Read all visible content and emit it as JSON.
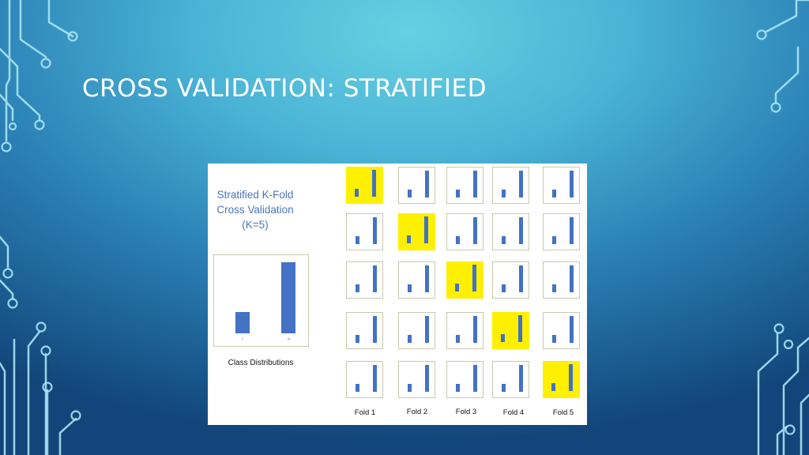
{
  "slide": {
    "title": "CROSS VALIDATION: STRATIFIED"
  },
  "panel": {
    "heading_lines": [
      "Stratified K-Fold",
      "Cross Validation",
      "(K=5)"
    ],
    "caption": "Class Distributions",
    "fold_labels": [
      "Fold 1",
      "Fold 2",
      "Fold 3",
      "Fold 4",
      "Fold 5"
    ]
  },
  "colors": {
    "bar": "#4472c4",
    "test_highlight": "#ffef00",
    "chart_border": "#c9c8ad",
    "title_text": "#ffffff",
    "heading_text": "#4a74c4"
  },
  "chart_data": {
    "type": "bar",
    "categories": [
      "F",
      "M"
    ],
    "overall_values": [
      0.26,
      0.88
    ],
    "folds": {
      "count": 5,
      "rows": 5,
      "test_fold_per_row": [
        1,
        2,
        3,
        4,
        5
      ],
      "mini_chart_values": [
        0.26,
        0.9
      ]
    }
  }
}
